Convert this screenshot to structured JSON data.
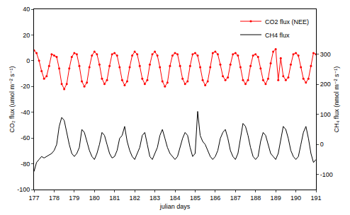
{
  "chart_data": {
    "type": "line",
    "x_label": "julian days",
    "y_label": "CO₂ flux (umol m⁻² s⁻¹)",
    "y2_label": "CH₄ flux (nmol m⁻² s⁻¹)",
    "xlim": [
      177,
      191
    ],
    "xticks": [
      177,
      178,
      179,
      180,
      181,
      182,
      183,
      184,
      185,
      186,
      187,
      188,
      189,
      190,
      191
    ],
    "ylim": [
      -100,
      40
    ],
    "yticks": [
      -100,
      -80,
      -60,
      -40,
      -20,
      0,
      20,
      40
    ],
    "y2lim": [
      -150,
      450
    ],
    "y2ticks": [
      -100,
      0,
      100,
      200,
      300
    ],
    "grid": false,
    "legend": "top-right",
    "x": [
      177,
      177.125,
      177.25,
      177.375,
      177.5,
      177.625,
      177.75,
      177.875,
      178,
      178.125,
      178.25,
      178.375,
      178.5,
      178.625,
      178.75,
      178.875,
      179,
      179.125,
      179.25,
      179.375,
      179.5,
      179.625,
      179.75,
      179.875,
      180,
      180.125,
      180.25,
      180.375,
      180.5,
      180.625,
      180.75,
      180.875,
      181,
      181.125,
      181.25,
      181.375,
      181.5,
      181.625,
      181.75,
      181.875,
      182,
      182.125,
      182.25,
      182.375,
      182.5,
      182.625,
      182.75,
      182.875,
      183,
      183.125,
      183.25,
      183.375,
      183.5,
      183.625,
      183.75,
      183.875,
      184,
      184.125,
      184.25,
      184.375,
      184.5,
      184.625,
      184.75,
      184.875,
      185,
      185.125,
      185.25,
      185.375,
      185.5,
      185.625,
      185.75,
      185.875,
      186,
      186.125,
      186.25,
      186.375,
      186.5,
      186.625,
      186.75,
      186.875,
      187,
      187.125,
      187.25,
      187.375,
      187.5,
      187.625,
      187.75,
      187.875,
      188,
      188.125,
      188.25,
      188.375,
      188.5,
      188.625,
      188.75,
      188.875,
      189,
      189.125,
      189.25,
      189.375,
      189.5,
      189.625,
      189.75,
      189.875,
      190,
      190.125,
      190.25,
      190.375,
      190.5,
      190.625,
      190.75,
      190.875,
      191
    ],
    "series": [
      {
        "name": "CO2 flux (NEE)",
        "color": "#ff0000",
        "marker": "circle",
        "axis": "y",
        "values": [
          8,
          6,
          0,
          -8,
          -14,
          -12,
          -4,
          5,
          4,
          3,
          -6,
          -18,
          -22,
          -18,
          -6,
          3,
          6,
          5,
          -4,
          -16,
          -20,
          -17,
          -5,
          4,
          7,
          5,
          -3,
          -14,
          -18,
          -15,
          -4,
          5,
          6,
          4,
          -5,
          -15,
          -19,
          -16,
          -5,
          4,
          7,
          5,
          -4,
          -14,
          -18,
          -15,
          -3,
          5,
          7,
          4,
          -5,
          -16,
          -20,
          -17,
          -4,
          4,
          6,
          5,
          -4,
          -14,
          -18,
          -16,
          -4,
          5,
          6,
          4,
          -5,
          -15,
          -19,
          -16,
          -5,
          6,
          7,
          5,
          -3,
          -12,
          -15,
          -13,
          -3,
          5,
          6,
          4,
          -5,
          -15,
          -18,
          -15,
          -4,
          4,
          5,
          3,
          -6,
          -15,
          -18,
          -14,
          -2,
          7,
          9,
          -15,
          2,
          -12,
          -15,
          -13,
          -3,
          5,
          6,
          4,
          -5,
          -14,
          -17,
          -14,
          -4,
          6,
          5
        ]
      },
      {
        "name": "CH4 flux",
        "color": "#000000",
        "axis": "y2",
        "values": [
          -90,
          -60,
          -50,
          -40,
          -45,
          -40,
          -35,
          -30,
          -20,
          0,
          60,
          90,
          80,
          40,
          0,
          -30,
          -40,
          -30,
          -10,
          50,
          40,
          10,
          -20,
          -40,
          -50,
          -30,
          0,
          40,
          30,
          0,
          -30,
          -45,
          -40,
          -20,
          20,
          30,
          60,
          10,
          -20,
          -40,
          -50,
          -30,
          -10,
          30,
          40,
          0,
          -40,
          -50,
          -30,
          -10,
          30,
          50,
          20,
          -10,
          -30,
          -40,
          -50,
          -40,
          -10,
          20,
          40,
          30,
          -10,
          -40,
          -30,
          110,
          30,
          10,
          0,
          -20,
          -40,
          -50,
          -40,
          -20,
          20,
          40,
          50,
          20,
          -20,
          -40,
          -50,
          -30,
          20,
          70,
          60,
          30,
          -10,
          -40,
          -50,
          -40,
          10,
          40,
          30,
          0,
          -30,
          -40,
          -50,
          -30,
          20,
          60,
          50,
          20,
          -20,
          -40,
          -50,
          -40,
          0,
          40,
          60,
          20,
          -30,
          -60,
          -50
        ]
      }
    ]
  }
}
